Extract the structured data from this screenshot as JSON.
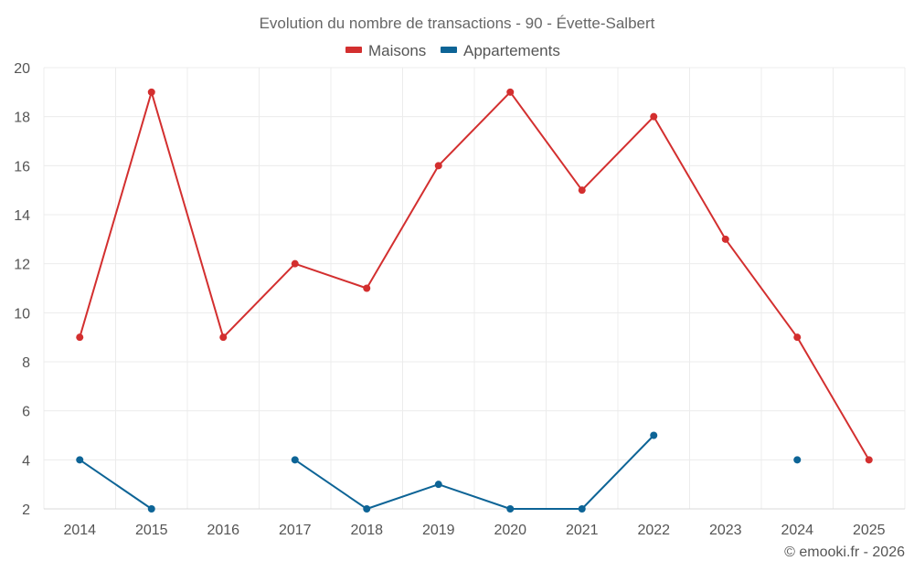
{
  "chart_data": {
    "type": "line",
    "title": "Evolution du nombre de transactions - 90 - Évette-Salbert",
    "categories": [
      "2014",
      "2015",
      "2016",
      "2017",
      "2018",
      "2019",
      "2020",
      "2021",
      "2022",
      "2023",
      "2024",
      "2025"
    ],
    "ylim": [
      2,
      20
    ],
    "yticks": [
      2,
      4,
      6,
      8,
      10,
      12,
      14,
      16,
      18,
      20
    ],
    "grid": true,
    "legend_position": "top-center",
    "series": [
      {
        "name": "Maisons",
        "color": "#d32f2f",
        "values": [
          9,
          19,
          9,
          12,
          11,
          16,
          19,
          15,
          18,
          13,
          9,
          4
        ]
      },
      {
        "name": "Appartements",
        "color": "#0d6496",
        "values": [
          4,
          2,
          null,
          4,
          2,
          3,
          2,
          2,
          5,
          null,
          4,
          null
        ]
      }
    ],
    "credit": "© emooki.fr - 2026"
  }
}
